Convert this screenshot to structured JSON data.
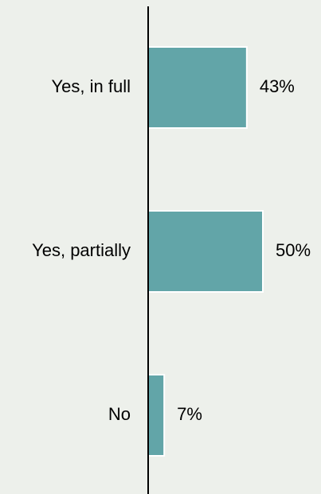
{
  "chart_data": {
    "type": "bar",
    "orientation": "horizontal",
    "categories": [
      "Yes, in full",
      "Yes, partially",
      "No"
    ],
    "values": [
      43,
      50,
      7
    ],
    "value_labels": [
      "43%",
      "50%",
      "7%"
    ],
    "unit": "%",
    "xlim": [
      0,
      100
    ],
    "grid": false,
    "legend": "none",
    "colors": {
      "bar_fill": "#62a5a8",
      "bar_stroke": "#ffffff",
      "axis": "#000000",
      "background": "#edf0eb"
    }
  }
}
